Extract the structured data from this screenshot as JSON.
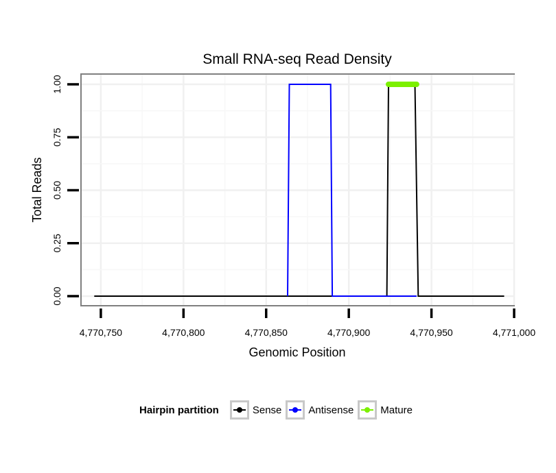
{
  "chart_data": {
    "type": "line",
    "title": "Small RNA-seq Read Density",
    "xlabel": "Genomic Position",
    "ylabel": "Total Reads",
    "xlim": [
      4770738,
      4771000
    ],
    "ylim": [
      0,
      1
    ],
    "x_ticks": [
      4770750,
      4770800,
      4770850,
      4770900,
      4770950,
      4771000
    ],
    "x_tick_labels": [
      "4,770,750",
      "4,770,800",
      "4,770,850",
      "4,770,900",
      "4,770,950",
      "4,771,000"
    ],
    "y_ticks": [
      0,
      0.25,
      0.5,
      0.75,
      1
    ],
    "y_tick_labels": [
      "0.00",
      "0.25",
      "0.50",
      "0.75",
      "1.00"
    ],
    "grid": true,
    "legend_position": "bottom",
    "legend_title": "Hairpin partition",
    "series": [
      {
        "name": "Sense",
        "color": "#000000",
        "x": [
          4770746,
          4770923,
          4770924,
          4770940,
          4770942,
          4770994
        ],
        "y": [
          0,
          0,
          1,
          1,
          0,
          0
        ]
      },
      {
        "name": "Antisense",
        "color": "#0000ff",
        "x": [
          4770863,
          4770864,
          4770889,
          4770890,
          4770924,
          4770941
        ],
        "y": [
          0,
          1,
          1,
          0,
          0,
          0
        ]
      },
      {
        "name": "Mature",
        "color": "#7cf000",
        "x": [
          4770924,
          4770941
        ],
        "y": [
          1,
          1
        ]
      }
    ]
  }
}
